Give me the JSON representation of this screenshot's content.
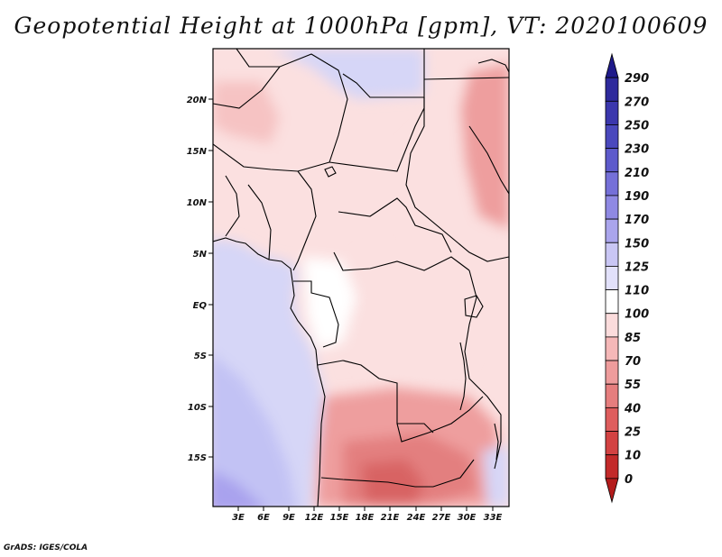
{
  "title": "Geopotential Height at 1000hPa [gpm], VT: 2020100609",
  "credit": "GrADS: IGES/COLA",
  "map": {
    "lat_labels": [
      "20N",
      "15N",
      "10N",
      "5N",
      "EQ",
      "5S",
      "10S",
      "15S"
    ],
    "lon_labels": [
      "3E",
      "6E",
      "9E",
      "12E",
      "15E",
      "18E",
      "21E",
      "24E",
      "27E",
      "30E",
      "33E"
    ],
    "field_colors": {
      "ocean_light": "#d6d6f7",
      "ocean_mid": "#c2c2f4",
      "ocean_deep": "#a9a2ee",
      "near_neutral": "#ffffff",
      "pink_light": "#fbe0e0",
      "pink_mid": "#f6c3c3",
      "red_mid": "#ee9e9e",
      "red_dark": "#e37f7f",
      "red_deep": "#d86464"
    }
  },
  "colorbar": {
    "labels": [
      "290",
      "270",
      "250",
      "230",
      "210",
      "190",
      "170",
      "150",
      "125",
      "110",
      "100",
      "85",
      "70",
      "55",
      "40",
      "25",
      "10",
      "0"
    ],
    "colors": [
      "#1f1a8a",
      "#2e2a9c",
      "#3b37ad",
      "#4a48bd",
      "#5d5acb",
      "#7570d8",
      "#8f89e3",
      "#aaa5ec",
      "#c9c6f4",
      "#e2e1fa",
      "#ffffff",
      "#fbdcdc",
      "#f5b8b8",
      "#ee9c9c",
      "#e67e7e",
      "#de5d5d",
      "#d34242",
      "#c32a2a",
      "#b31b1b"
    ]
  }
}
